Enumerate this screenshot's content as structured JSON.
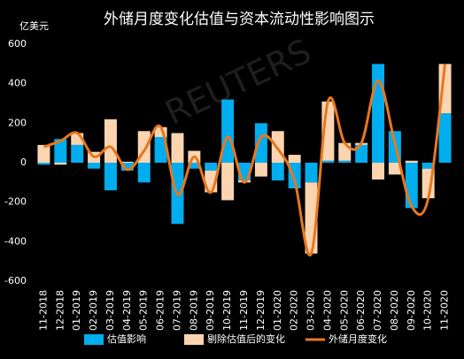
{
  "chart_data": {
    "type": "bar-line",
    "title": "外储月度变化估值与资本流动性影响图示",
    "y_axis_label": "亿美元",
    "watermark": "REUTERS",
    "categories": [
      "11-2018",
      "12-2018",
      "01-2019",
      "02-2019",
      "03-2019",
      "04-2019",
      "05-2019",
      "06-2019",
      "07-2019",
      "08-2019",
      "09-2019",
      "10-2019",
      "11-2019",
      "12-2019",
      "01-2020",
      "02-2020",
      "03-2020",
      "04-2020",
      "05-2020",
      "06-2020",
      "07-2020",
      "08-2020",
      "09-2020",
      "10-2020",
      "11-2020"
    ],
    "series": [
      {
        "name": "估值影响",
        "type": "bar",
        "color": "#00aeef",
        "values": [
          -10,
          120,
          90,
          -30,
          -140,
          -40,
          -100,
          130,
          -310,
          -30,
          -40,
          320,
          -90,
          200,
          -90,
          -130,
          -100,
          10,
          10,
          90,
          500,
          160,
          -230,
          -30,
          250
        ]
      },
      {
        "name": "剔除估值后的变化",
        "type": "bar",
        "color": "#fdd4b0",
        "values": [
          90,
          -10,
          60,
          55,
          220,
          5,
          160,
          50,
          150,
          60,
          -110,
          -190,
          -10,
          -70,
          160,
          40,
          -360,
          300,
          90,
          10,
          -85,
          -60,
          10,
          -150,
          250
        ]
      },
      {
        "name": "外储月度变化",
        "type": "line",
        "color": "#e8771e",
        "values": [
          80,
          110,
          150,
          30,
          80,
          -35,
          60,
          180,
          -160,
          30,
          -150,
          130,
          -100,
          130,
          70,
          -90,
          -460,
          310,
          100,
          100,
          415,
          100,
          -220,
          -180,
          500
        ]
      }
    ],
    "ylim": [
      -600,
      600
    ],
    "yticks": [
      -600,
      -400,
      -200,
      0,
      200,
      400,
      600
    ],
    "stacked": true,
    "legend": "bottom"
  }
}
